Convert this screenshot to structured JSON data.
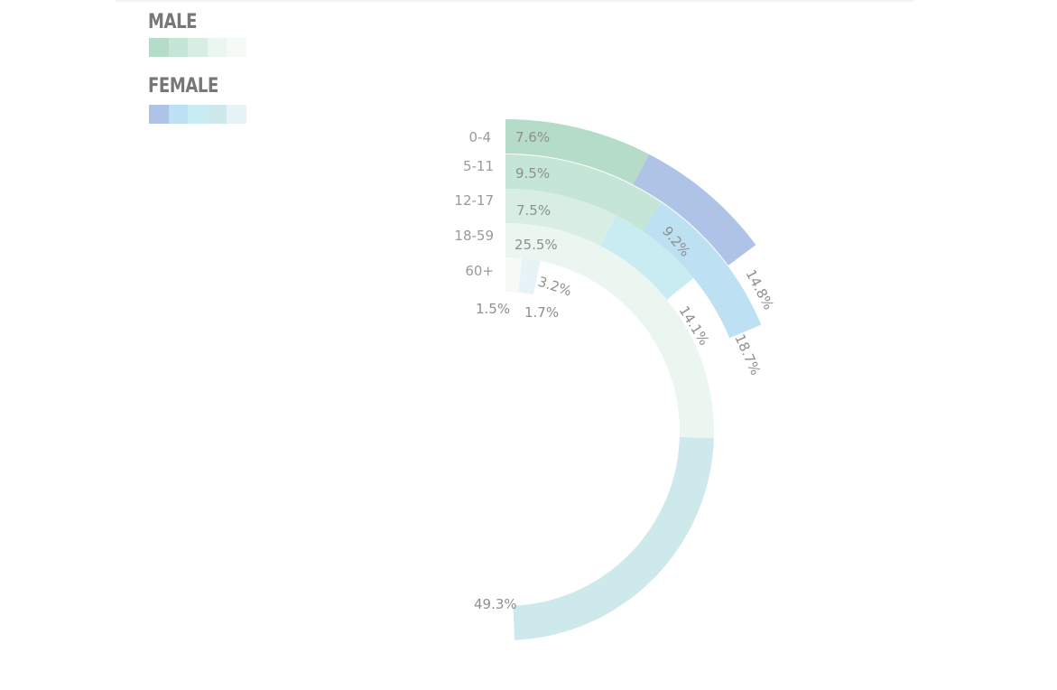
{
  "legend": {
    "male_title": "MALE",
    "female_title": "FEMALE",
    "male_colors": [
      "#b4dcc9",
      "#c5e5d6",
      "#d8eee3",
      "#ecf6f0",
      "#f5faf7"
    ],
    "female_colors": [
      "#aec3e6",
      "#bde0f2",
      "#c9ecf2",
      "#cde9ec",
      "#e8f3f8"
    ]
  },
  "chart_data": {
    "type": "radial-bar",
    "categories": [
      "0-4",
      "5-11",
      "12-17",
      "18-59",
      "60+"
    ],
    "series": [
      {
        "name": "MALE",
        "values": [
          7.6,
          9.5,
          7.5,
          25.5,
          1.5
        ]
      },
      {
        "name": "FEMALE",
        "values": [
          7.2,
          9.2,
          6.6,
          23.8,
          1.7
        ]
      }
    ],
    "male_labels": [
      "7.6%",
      "9.5%",
      "7.5%",
      "25.5%",
      "1.5%"
    ],
    "female_labels": [
      "9.2%",
      "14.1%",
      "1.7%"
    ],
    "total_labels": [
      "14.8%",
      "18.7%",
      "3.2%",
      "49.3%"
    ]
  }
}
